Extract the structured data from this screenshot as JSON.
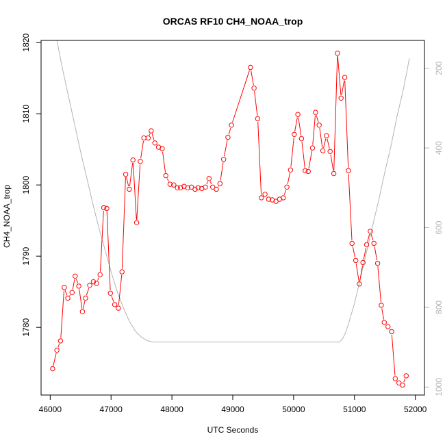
{
  "chart_data": {
    "type": "line",
    "title": "ORCAS RF10 CH4_NOAA_trop",
    "xlabel": "UTC Seconds",
    "ylabel": "CH4_NOAA_trop",
    "xlim": [
      45850,
      52150
    ],
    "ylim": [
      1770.5,
      1820.3
    ],
    "x_ticks": [
      46000,
      47000,
      48000,
      49000,
      50000,
      51000,
      52000
    ],
    "y_ticks": [
      1780,
      1790,
      1800,
      1810,
      1820
    ],
    "right_axis": {
      "ticks": [
        200,
        400,
        600,
        800,
        1000
      ],
      "range": [
        130,
        1020
      ],
      "reversed": true,
      "color": "#b3b3b3"
    },
    "colors": {
      "series": "#ff0000",
      "secondary": "#b3b3b3",
      "frame": "#000000"
    },
    "series": [
      {
        "style": "line-with-open-circles",
        "color": "#ff0000",
        "points": [
          [
            46040,
            1774.2
          ],
          [
            46110,
            1776.8
          ],
          [
            46170,
            1778.1
          ],
          [
            46230,
            1785.6
          ],
          [
            46290,
            1784.1
          ],
          [
            46360,
            1784.9
          ],
          [
            46410,
            1787.2
          ],
          [
            46470,
            1785.8
          ],
          [
            46530,
            1782.2
          ],
          [
            46580,
            1784.1
          ],
          [
            46650,
            1785.9
          ],
          [
            46710,
            1786.4
          ],
          [
            46760,
            1786.2
          ],
          [
            46820,
            1787.4
          ],
          [
            46880,
            1796.8
          ],
          [
            46930,
            1796.7
          ],
          [
            46990,
            1784.8
          ],
          [
            47060,
            1783.2
          ],
          [
            47120,
            1782.7
          ],
          [
            47180,
            1787.8
          ],
          [
            47240,
            1801.5
          ],
          [
            47300,
            1799.4
          ],
          [
            47360,
            1803.5
          ],
          [
            47420,
            1794.7
          ],
          [
            47480,
            1803.3
          ],
          [
            47540,
            1806.6
          ],
          [
            47610,
            1806.6
          ],
          [
            47660,
            1807.6
          ],
          [
            47720,
            1805.9
          ],
          [
            47780,
            1805.3
          ],
          [
            47840,
            1805.1
          ],
          [
            47900,
            1801.3
          ],
          [
            47970,
            1800.1
          ],
          [
            48030,
            1800.0
          ],
          [
            48090,
            1799.6
          ],
          [
            48140,
            1799.6
          ],
          [
            48200,
            1799.8
          ],
          [
            48260,
            1799.6
          ],
          [
            48320,
            1799.7
          ],
          [
            48380,
            1799.4
          ],
          [
            48430,
            1799.6
          ],
          [
            48490,
            1799.5
          ],
          [
            48550,
            1799.7
          ],
          [
            48610,
            1800.9
          ],
          [
            48670,
            1799.7
          ],
          [
            48730,
            1799.4
          ],
          [
            48790,
            1800.2
          ],
          [
            48850,
            1803.6
          ],
          [
            48920,
            1806.7
          ],
          [
            48980,
            1808.4
          ],
          [
            49290,
            1816.5
          ],
          [
            49350,
            1813.6
          ],
          [
            49410,
            1809.3
          ],
          [
            49470,
            1798.2
          ],
          [
            49530,
            1798.7
          ],
          [
            49590,
            1798.0
          ],
          [
            49650,
            1797.9
          ],
          [
            49710,
            1797.7
          ],
          [
            49770,
            1798.0
          ],
          [
            49830,
            1798.2
          ],
          [
            49890,
            1799.7
          ],
          [
            49950,
            1802.1
          ],
          [
            50010,
            1807.1
          ],
          [
            50070,
            1809.9
          ],
          [
            50130,
            1806.5
          ],
          [
            50190,
            1802.0
          ],
          [
            50240,
            1801.9
          ],
          [
            50310,
            1805.2
          ],
          [
            50360,
            1810.2
          ],
          [
            50420,
            1808.4
          ],
          [
            50480,
            1804.8
          ],
          [
            50540,
            1806.9
          ],
          [
            50600,
            1804.7
          ],
          [
            50660,
            1801.6
          ],
          [
            50720,
            1818.5
          ],
          [
            50780,
            1812.2
          ],
          [
            50840,
            1815.1
          ],
          [
            50900,
            1802.0
          ],
          [
            50960,
            1791.8
          ],
          [
            51020,
            1789.4
          ],
          [
            51080,
            1786.1
          ],
          [
            51140,
            1789.1
          ],
          [
            51200,
            1791.6
          ],
          [
            51260,
            1793.5
          ],
          [
            51320,
            1791.8
          ],
          [
            51380,
            1789.0
          ],
          [
            51440,
            1783.1
          ],
          [
            51490,
            1780.7
          ],
          [
            51550,
            1780.1
          ],
          [
            51610,
            1779.4
          ],
          [
            51670,
            1772.8
          ],
          [
            51730,
            1772.2
          ],
          [
            51790,
            1771.9
          ],
          [
            51850,
            1773.2
          ]
        ]
      },
      {
        "style": "line",
        "color": "#b3b3b3",
        "axis": "right",
        "points": [
          [
            46110,
            130
          ],
          [
            46200,
            200
          ],
          [
            46300,
            270
          ],
          [
            46400,
            340
          ],
          [
            46500,
            410
          ],
          [
            46600,
            475
          ],
          [
            46700,
            540
          ],
          [
            46800,
            600
          ],
          [
            46900,
            655
          ],
          [
            47000,
            710
          ],
          [
            47100,
            760
          ],
          [
            47200,
            800
          ],
          [
            47300,
            835
          ],
          [
            47400,
            860
          ],
          [
            47500,
            875
          ],
          [
            47600,
            884
          ],
          [
            47700,
            887
          ],
          [
            48000,
            887
          ],
          [
            49000,
            887
          ],
          [
            50000,
            887
          ],
          [
            50500,
            887
          ],
          [
            50750,
            887
          ],
          [
            50800,
            880
          ],
          [
            50850,
            865
          ],
          [
            50900,
            842
          ],
          [
            51000,
            790
          ],
          [
            51100,
            725
          ],
          [
            51200,
            660
          ],
          [
            51300,
            595
          ],
          [
            51400,
            530
          ],
          [
            51500,
            460
          ],
          [
            51600,
            395
          ],
          [
            51700,
            320
          ],
          [
            51800,
            255
          ],
          [
            51860,
            210
          ],
          [
            51900,
            175
          ]
        ]
      }
    ]
  }
}
